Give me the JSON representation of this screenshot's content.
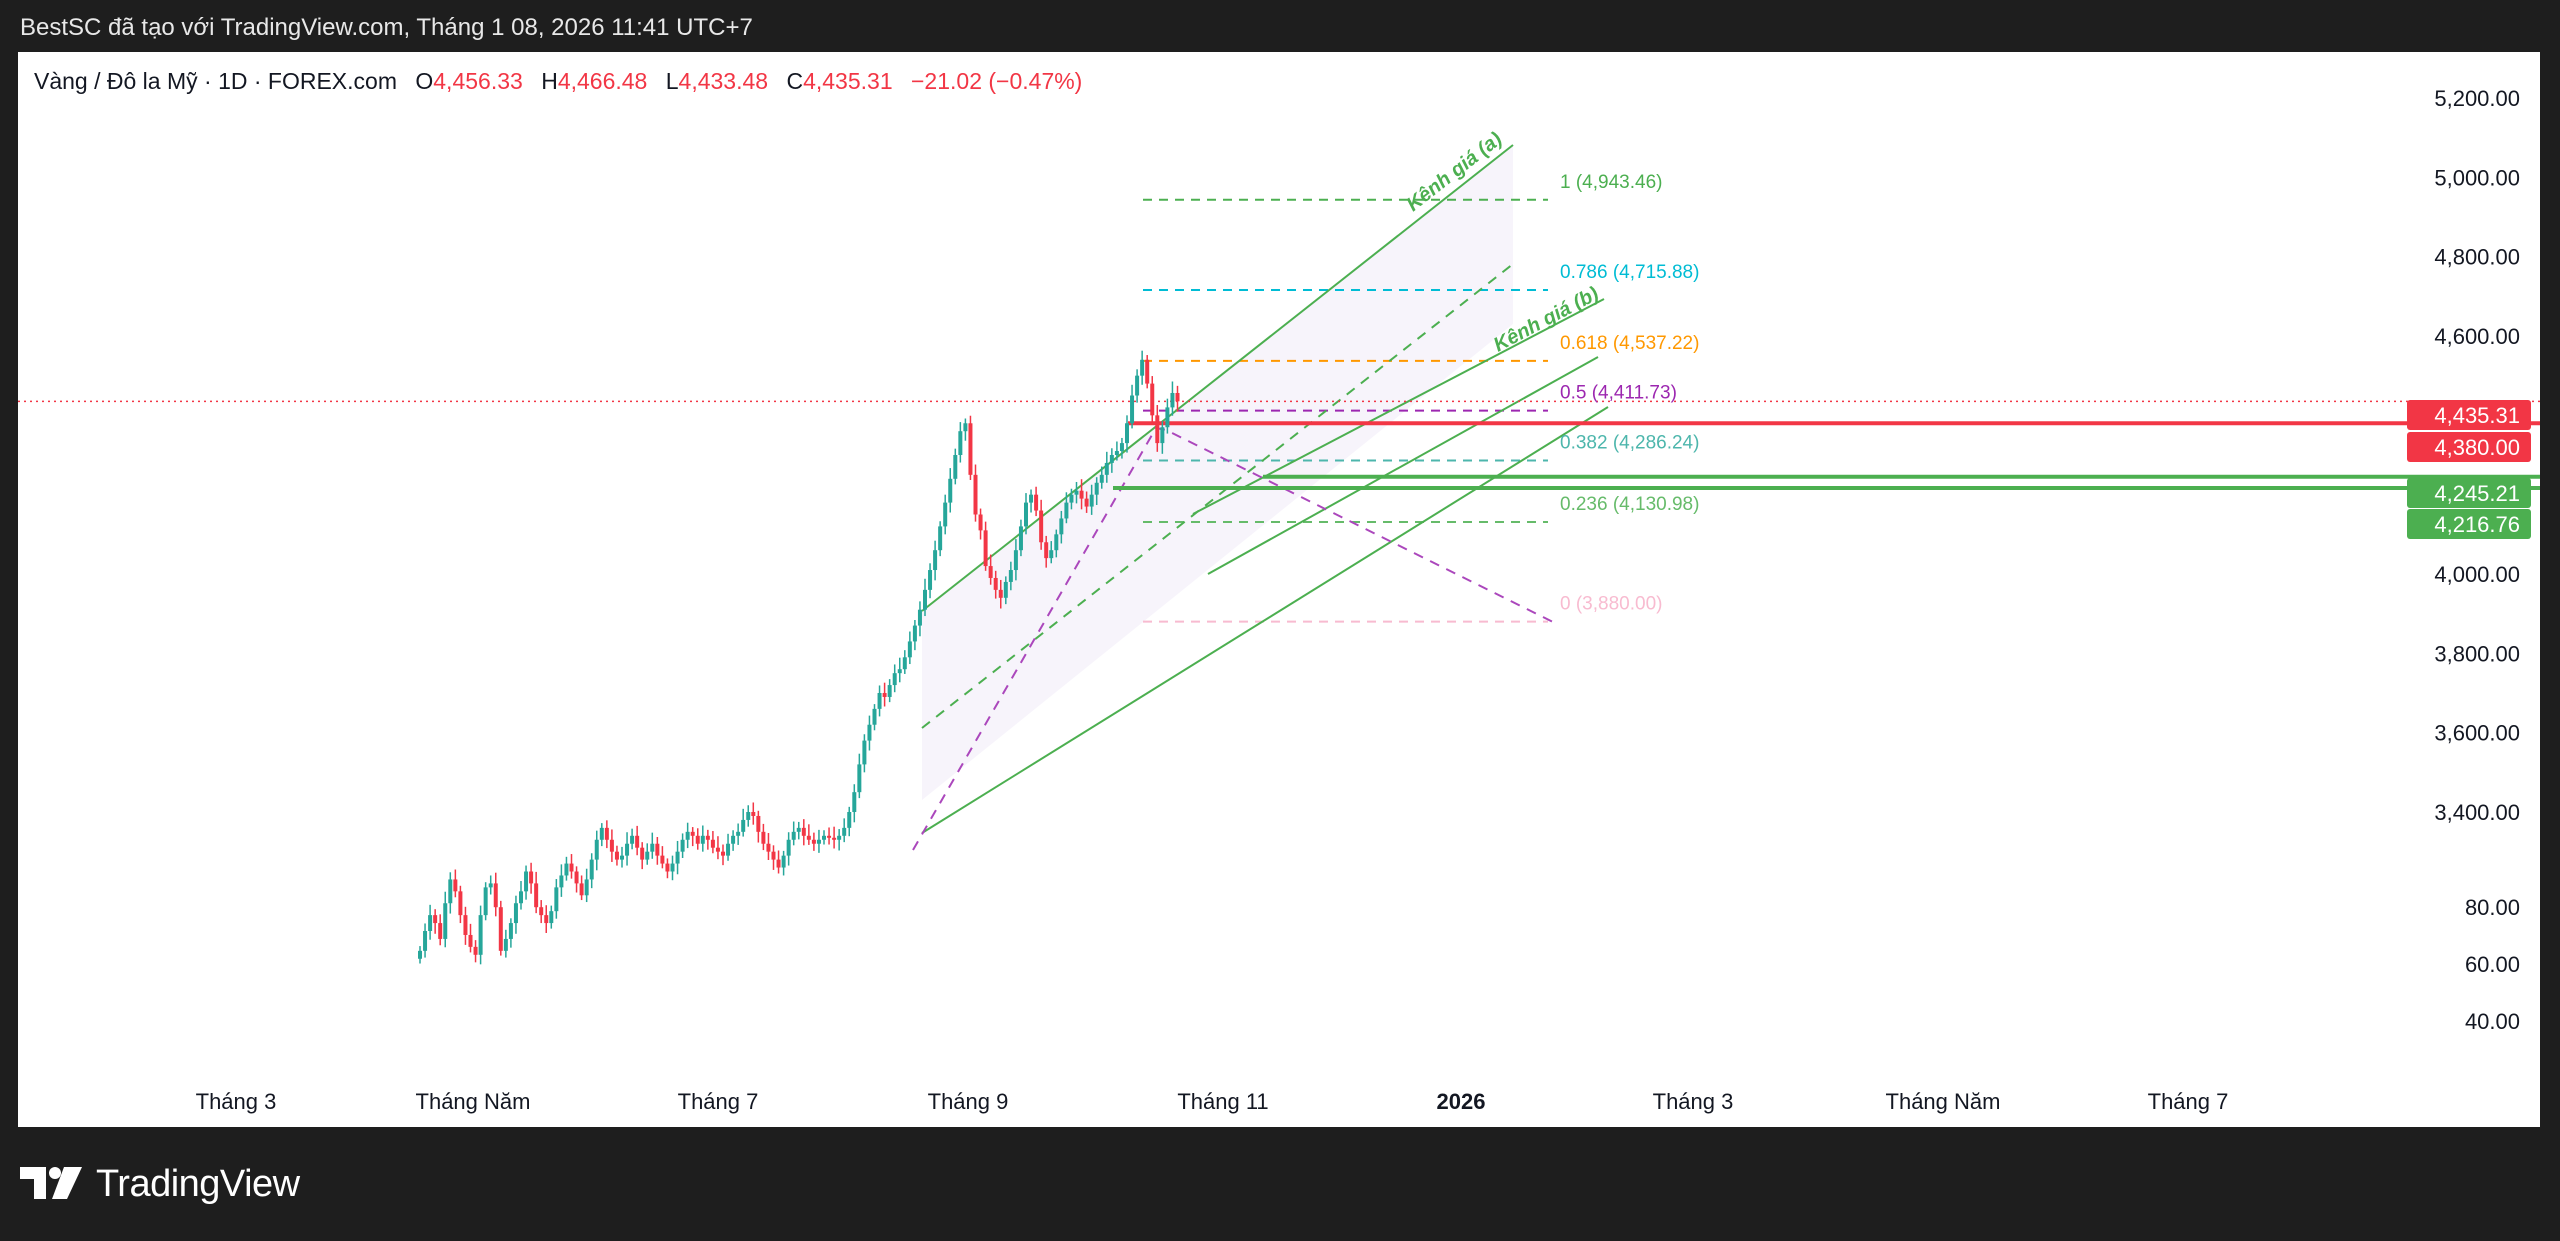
{
  "top_bar": {
    "text": "BestSC đã tạo với TradingView.com, Tháng 1 08, 2026 11:41 UTC+7"
  },
  "legend": {
    "symbol": "Vàng / Đô la Mỹ · 1D · FOREX.com",
    "o_label": "O",
    "o_value": "4,456.33",
    "h_label": "H",
    "h_value": "4,466.48",
    "l_label": "L",
    "l_value": "4,433.48",
    "c_label": "C",
    "c_value": "4,435.31",
    "change": "−21.02 (−0.47%)"
  },
  "footer": {
    "brand": "TradingView",
    "logo_icon": "tradingview-logo-icon"
  },
  "colors": {
    "up": "#26a69a",
    "down": "#f23645",
    "channel": "#4caf50",
    "fib_1": "#4caf50",
    "fib_0786": "#00bcd4",
    "fib_0618": "#ff9800",
    "fib_05": "#9c27b0",
    "fib_0382": "#4db6ac",
    "fib_0236": "#66bb6a",
    "fib_0": "#f8bbd0",
    "last_price": "#f23645",
    "support": "#4caf50"
  },
  "chart_data": {
    "type": "candlestick",
    "symbol": "XAUUSD",
    "interval": "1D",
    "x_ticks": [
      "Tháng 3",
      "Tháng Năm",
      "Tháng 7",
      "Tháng 9",
      "Tháng 11",
      "2026",
      "Tháng 3",
      "Tháng Năm",
      "Tháng 7"
    ],
    "y_ticks_price": [
      "5,200.00",
      "5,000.00",
      "4,800.00",
      "4,600.00",
      "4,000.00",
      "3,800.00",
      "3,600.00",
      "3,400.00"
    ],
    "y_ticks_lower": [
      "80.00",
      "60.00",
      "40.00"
    ],
    "price_badges": [
      {
        "value": "4,435.31",
        "color": "#f23645"
      },
      {
        "value": "4,380.00",
        "color": "#f23645"
      },
      {
        "value": "4,245.21",
        "color": "#4caf50"
      },
      {
        "value": "4,216.76",
        "color": "#4caf50"
      }
    ],
    "fib_levels": [
      {
        "label": "1 (4,943.46)",
        "price": 4943.46,
        "color": "#4caf50"
      },
      {
        "label": "0.786 (4,715.88)",
        "price": 4715.88,
        "color": "#00bcd4"
      },
      {
        "label": "0.618 (4,537.22)",
        "price": 4537.22,
        "color": "#ff9800"
      },
      {
        "label": "0.5 (4,411.73)",
        "price": 4411.73,
        "color": "#9c27b0"
      },
      {
        "label": "0.382 (4,286.24)",
        "price": 4286.24,
        "color": "#4db6ac"
      },
      {
        "label": "0.236 (4,130.98)",
        "price": 4130.98,
        "color": "#66bb6a"
      },
      {
        "label": "0 (3,880.00)",
        "price": 3880.0,
        "color": "#f8bbd0"
      }
    ],
    "annotations": [
      "Kênh giá (a)",
      "Kênh giá (b)"
    ],
    "horizontal_lines": [
      4380.0,
      4245.21,
      4216.76
    ],
    "last_price": 4435.31,
    "closes": [
      3050,
      3100,
      3140,
      3120,
      3080,
      3170,
      3230,
      3200,
      3140,
      3090,
      3060,
      3040,
      3140,
      3210,
      3220,
      3160,
      3050,
      3080,
      3120,
      3170,
      3200,
      3250,
      3220,
      3160,
      3140,
      3120,
      3150,
      3210,
      3240,
      3270,
      3250,
      3220,
      3190,
      3230,
      3280,
      3330,
      3360,
      3330,
      3300,
      3280,
      3290,
      3320,
      3340,
      3310,
      3280,
      3300,
      3320,
      3290,
      3270,
      3250,
      3270,
      3300,
      3330,
      3350,
      3340,
      3320,
      3340,
      3330,
      3310,
      3300,
      3290,
      3320,
      3340,
      3350,
      3380,
      3400,
      3390,
      3350,
      3320,
      3300,
      3280,
      3260,
      3290,
      3330,
      3350,
      3360,
      3340,
      3330,
      3320,
      3330,
      3340,
      3335,
      3330,
      3340,
      3360,
      3400,
      3450,
      3520,
      3580,
      3620,
      3660,
      3700,
      3690,
      3720,
      3750,
      3760,
      3790,
      3830,
      3870,
      3910,
      3960,
      4010,
      4060,
      4120,
      4180,
      4240,
      4300,
      4360,
      4380,
      4250,
      4150,
      4110,
      4020,
      3990,
      3960,
      3940,
      3980,
      4010,
      4060,
      4120,
      4180,
      4200,
      4160,
      4080,
      4040,
      4060,
      4100,
      4140,
      4180,
      4200,
      4210,
      4190,
      4170,
      4200,
      4230,
      4250,
      4280,
      4300,
      4310,
      4330,
      4380,
      4450,
      4500,
      4540,
      4480,
      4400,
      4330,
      4370,
      4420,
      4456.33,
      4435.31
    ]
  }
}
